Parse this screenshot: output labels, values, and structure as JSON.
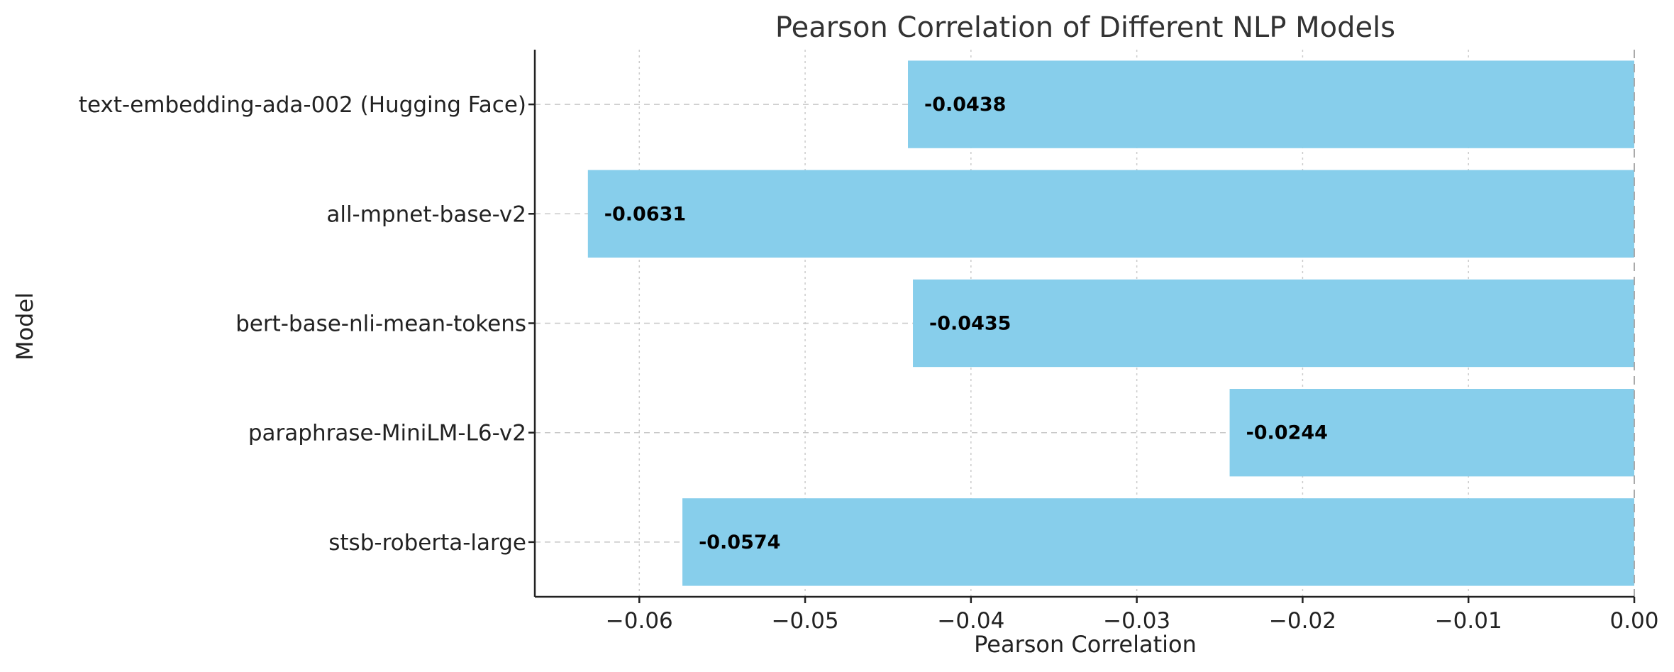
{
  "chart_data": {
    "type": "bar",
    "orientation": "horizontal",
    "title": "Pearson Correlation of Different NLP Models",
    "xlabel": "Pearson Correlation",
    "ylabel": "Model",
    "categories": [
      "text-embedding-ada-002 (Hugging Face)",
      "all-mpnet-base-v2",
      "bert-base-nli-mean-tokens",
      "paraphrase-MiniLM-L6-v2",
      "stsb-roberta-large"
    ],
    "values": [
      -0.0438,
      -0.0631,
      -0.0435,
      -0.0244,
      -0.0574
    ],
    "data_labels": [
      "-0.0438",
      "-0.0631",
      "-0.0435",
      "-0.0244",
      "-0.0574"
    ],
    "xlim": [
      -0.0663,
      0.0
    ],
    "xticks": [
      -0.06,
      -0.05,
      -0.04,
      -0.03,
      -0.02,
      -0.01,
      0.0
    ],
    "xtick_labels": [
      "−0.06",
      "−0.05",
      "−0.04",
      "−0.03",
      "−0.02",
      "−0.01",
      "0.00"
    ],
    "grid": true,
    "bar_color": "#87CEEB"
  }
}
